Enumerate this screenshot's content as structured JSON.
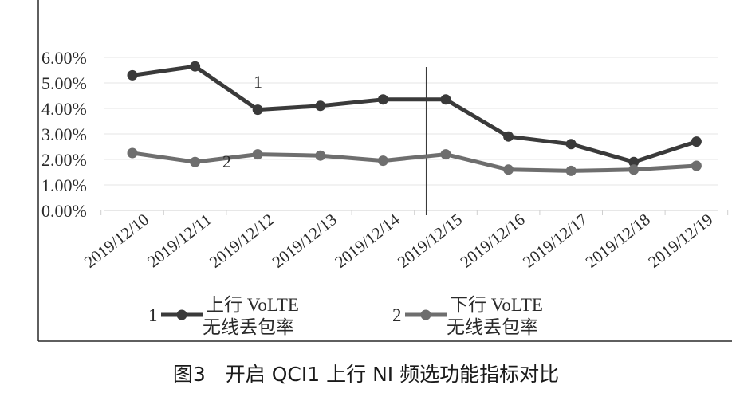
{
  "chart_data": {
    "type": "line",
    "categories": [
      "2019/12/10",
      "2019/12/11",
      "2019/12/12",
      "2019/12/13",
      "2019/12/14",
      "2019/12/15",
      "2019/12/16",
      "2019/12/17",
      "2019/12/18",
      "2019/12/19"
    ],
    "series": [
      {
        "id": "1",
        "name": "上行 VoLTE 无线丢包率",
        "name_line1": "上行 VoLTE",
        "name_line2": "无线丢包率",
        "color": "#3a3a3a",
        "values": [
          5.3,
          5.65,
          3.95,
          4.1,
          4.35,
          4.35,
          2.9,
          2.6,
          1.9,
          2.7
        ]
      },
      {
        "id": "2",
        "name": "下行 VoLTE 无线丢包率",
        "name_line1": "下行 VoLTE",
        "name_line2": "无线丢包率",
        "color": "#6e6e6e",
        "values": [
          2.25,
          1.9,
          2.2,
          2.15,
          1.95,
          2.2,
          1.6,
          1.55,
          1.6,
          1.75
        ]
      }
    ],
    "y_ticks": [
      "0.00%",
      "1.00%",
      "2.00%",
      "3.00%",
      "4.00%",
      "5.00%",
      "6.00%"
    ],
    "ylim": [
      0,
      6
    ],
    "vertical_marker_between": [
      "2019/12/14",
      "2019/12/15"
    ],
    "grid": true,
    "legend": "bottom",
    "title": "",
    "xlabel": "",
    "ylabel": ""
  },
  "caption": "图3　开启 QCI1 上行 NI 频选功能指标对比"
}
